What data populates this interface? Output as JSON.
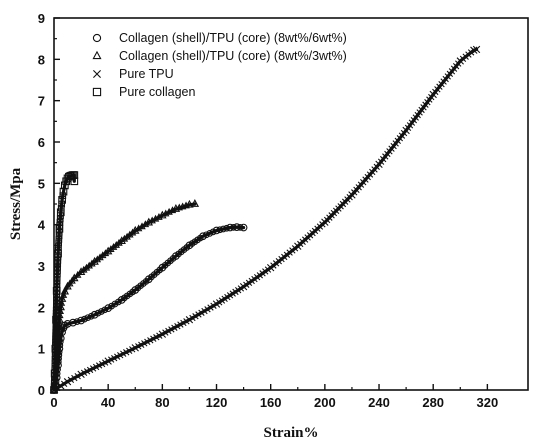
{
  "chart_data": {
    "type": "scatter",
    "xlabel": "Strain%",
    "ylabel": "Stress/Mpa",
    "xlim": [
      0,
      350
    ],
    "ylim": [
      0,
      9
    ],
    "x_ticks": [
      0,
      40,
      80,
      120,
      160,
      200,
      240,
      280,
      320
    ],
    "y_ticks": [
      0,
      1,
      2,
      3,
      4,
      5,
      6,
      7,
      8,
      9
    ],
    "grid": false,
    "legend_position": "top-left",
    "series": [
      {
        "name": "Collagen (shell)/TPU (core) (8wt%/6wt%)",
        "marker": "circle",
        "x": [
          0,
          1,
          2,
          3,
          4,
          5,
          6,
          7,
          8,
          10,
          14,
          20,
          30,
          40,
          50,
          60,
          70,
          80,
          90,
          100,
          110,
          120,
          130,
          135,
          140
        ],
        "y": [
          0,
          0.1,
          0.3,
          0.6,
          1.0,
          1.25,
          1.4,
          1.5,
          1.56,
          1.6,
          1.63,
          1.68,
          1.82,
          1.98,
          2.18,
          2.42,
          2.68,
          2.96,
          3.24,
          3.5,
          3.72,
          3.86,
          3.93,
          3.94,
          3.93
        ]
      },
      {
        "name": "Collagen (shell)/TPU (core) (8wt%/3wt%)",
        "marker": "triangle",
        "x": [
          0,
          1,
          2,
          3,
          4,
          5,
          6,
          8,
          10,
          15,
          20,
          30,
          40,
          50,
          60,
          70,
          80,
          90,
          100,
          104
        ],
        "y": [
          0,
          0.3,
          0.8,
          1.3,
          1.7,
          2.0,
          2.2,
          2.38,
          2.5,
          2.7,
          2.85,
          3.1,
          3.35,
          3.6,
          3.85,
          4.05,
          4.22,
          4.38,
          4.48,
          4.5
        ]
      },
      {
        "name": "Pure TPU",
        "marker": "x",
        "x": [
          0,
          5,
          10,
          20,
          40,
          60,
          80,
          100,
          120,
          140,
          160,
          180,
          200,
          220,
          240,
          260,
          280,
          300,
          310,
          312
        ],
        "y": [
          0,
          0.1,
          0.2,
          0.38,
          0.7,
          1.02,
          1.35,
          1.7,
          2.08,
          2.5,
          2.96,
          3.48,
          4.06,
          4.72,
          5.46,
          6.28,
          7.15,
          7.96,
          8.22,
          8.24
        ]
      },
      {
        "name": "Pure collagen",
        "marker": "square",
        "x": [
          0,
          0.5,
          1,
          1.5,
          2,
          3,
          4,
          5,
          6,
          7,
          8,
          9,
          10,
          11,
          12,
          13,
          14,
          15,
          15
        ],
        "y": [
          0,
          0.4,
          1.0,
          1.7,
          2.4,
          3.3,
          3.9,
          4.3,
          4.6,
          4.8,
          4.95,
          5.05,
          5.12,
          5.16,
          5.18,
          5.19,
          5.2,
          5.2,
          5.05
        ]
      }
    ]
  }
}
